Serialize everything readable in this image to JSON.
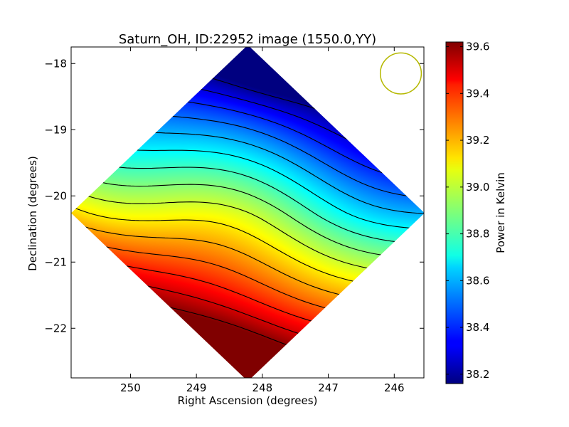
{
  "chart_data": {
    "type": "heatmap",
    "title": "Saturn_OH, ID:22952 image (1550.0,YY)",
    "xlabel": "Right Ascension (degrees)",
    "ylabel": "Declination (degrees)",
    "xlim": [
      250.9,
      245.55
    ],
    "ylim": [
      -22.75,
      -17.75
    ],
    "x_ticks": [
      250,
      249,
      248,
      247,
      246
    ],
    "y_ticks": [
      -18,
      -19,
      -20,
      -21,
      -22
    ],
    "x_tick_labels": [
      "250",
      "249",
      "248",
      "247",
      "246"
    ],
    "y_tick_labels": [
      "−18",
      "−19",
      "−20",
      "−21",
      "−22"
    ],
    "colorbar": {
      "label": "Power in Kelvin",
      "range": [
        38.16,
        39.62
      ],
      "ticks": [
        38.2,
        38.4,
        38.6,
        38.8,
        39.0,
        39.2,
        39.4,
        39.6
      ],
      "tick_labels": [
        "38.2",
        "38.4",
        "38.6",
        "38.8",
        "39.0",
        "39.2",
        "39.4",
        "39.6"
      ],
      "colormap": "jet"
    },
    "field": {
      "shape": "diamond",
      "center": [
        248.22,
        -20.26
      ],
      "half_width_ra": 2.68,
      "half_height_dec": 2.54,
      "min_location": [
        247.6,
        -17.75
      ],
      "max_location": [
        248.85,
        -22.75
      ]
    },
    "contour_levels": [
      38.2,
      38.3,
      38.4,
      38.5,
      38.6,
      38.7,
      38.8,
      38.9,
      39.0,
      39.1,
      39.2,
      39.3,
      39.4,
      39.5,
      39.6
    ],
    "contour_color": "#000000",
    "beam_circle": {
      "ra": 245.9,
      "dec": -18.15,
      "radius_deg": 0.31,
      "color": "#b5b800"
    },
    "grid": false,
    "legend": "none"
  }
}
